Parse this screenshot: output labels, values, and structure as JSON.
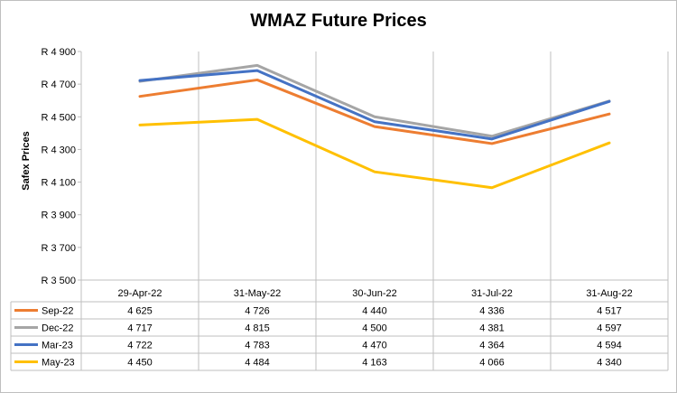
{
  "chart_data": {
    "type": "line",
    "title": "WMAZ Future Prices",
    "ylabel": "Safex Prices",
    "xlabel": "",
    "ylim": [
      3500,
      4900
    ],
    "yticks": [
      3500,
      3700,
      3900,
      4100,
      4300,
      4500,
      4700,
      4900
    ],
    "ytick_labels": [
      "R 3 500",
      "R 3 700",
      "R 3 900",
      "R 4 100",
      "R 4 300",
      "R 4 500",
      "R 4 700",
      "R 4 900"
    ],
    "categories": [
      "29-Apr-22",
      "31-May-22",
      "30-Jun-22",
      "31-Jul-22",
      "31-Aug-22"
    ],
    "grid": "vertical",
    "legend": "data-table",
    "series": [
      {
        "name": "Sep-22",
        "color": "#ED7D31",
        "values": [
          4625,
          4726,
          4440,
          4336,
          4517
        ],
        "labels": [
          "4 625",
          "4 726",
          "4 440",
          "4 336",
          "4 517"
        ]
      },
      {
        "name": "Dec-22",
        "color": "#A5A5A5",
        "values": [
          4717,
          4815,
          4500,
          4381,
          4597
        ],
        "labels": [
          "4 717",
          "4 815",
          "4 500",
          "4 381",
          "4 597"
        ]
      },
      {
        "name": "Mar-23",
        "color": "#4472C4",
        "values": [
          4722,
          4783,
          4470,
          4364,
          4594
        ],
        "labels": [
          "4 722",
          "4 783",
          "4 470",
          "4 364",
          "4 594"
        ]
      },
      {
        "name": "May-23",
        "color": "#FFC000",
        "values": [
          4450,
          4484,
          4163,
          4066,
          4340
        ],
        "labels": [
          "4 450",
          "4 484",
          "4 163",
          "4 066",
          "4 340"
        ]
      }
    ]
  }
}
